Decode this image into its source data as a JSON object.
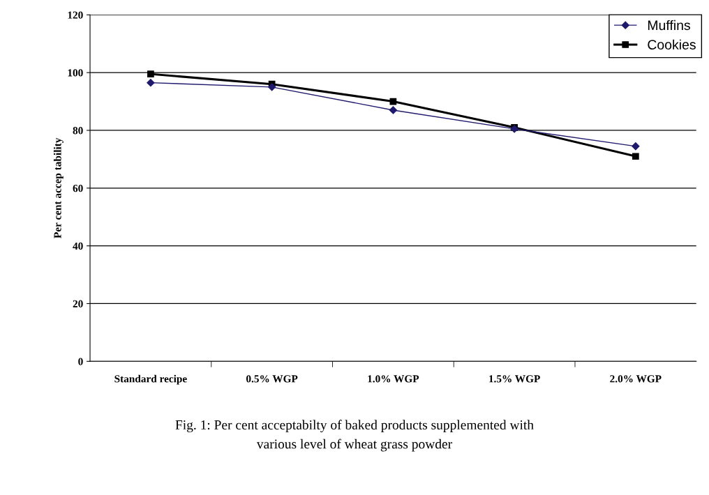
{
  "chart_data": {
    "type": "line",
    "categories": [
      "Standard recipe",
      "0.5% WGP",
      "1.0% WGP",
      "1.5% WGP",
      "2.0% WGP"
    ],
    "series": [
      {
        "name": "Muffins",
        "color": "#1f1a6e",
        "values": [
          96.5,
          95,
          87,
          80.5,
          74.5
        ],
        "marker": "diamond"
      },
      {
        "name": "Cookies",
        "color": "#000000",
        "values": [
          99.5,
          96,
          90,
          81,
          71
        ],
        "marker": "square"
      }
    ],
    "ylabel": "Per cent accep tability",
    "ylim": [
      0,
      120
    ],
    "yticks": [
      0,
      20,
      40,
      60,
      80,
      100,
      120
    ],
    "grid": "y",
    "legend": "top right",
    "annotations": [
      "Fig. 1: Per cent acceptabilty of baked products supplemented with\nvarious level of wheat grass powder"
    ]
  }
}
